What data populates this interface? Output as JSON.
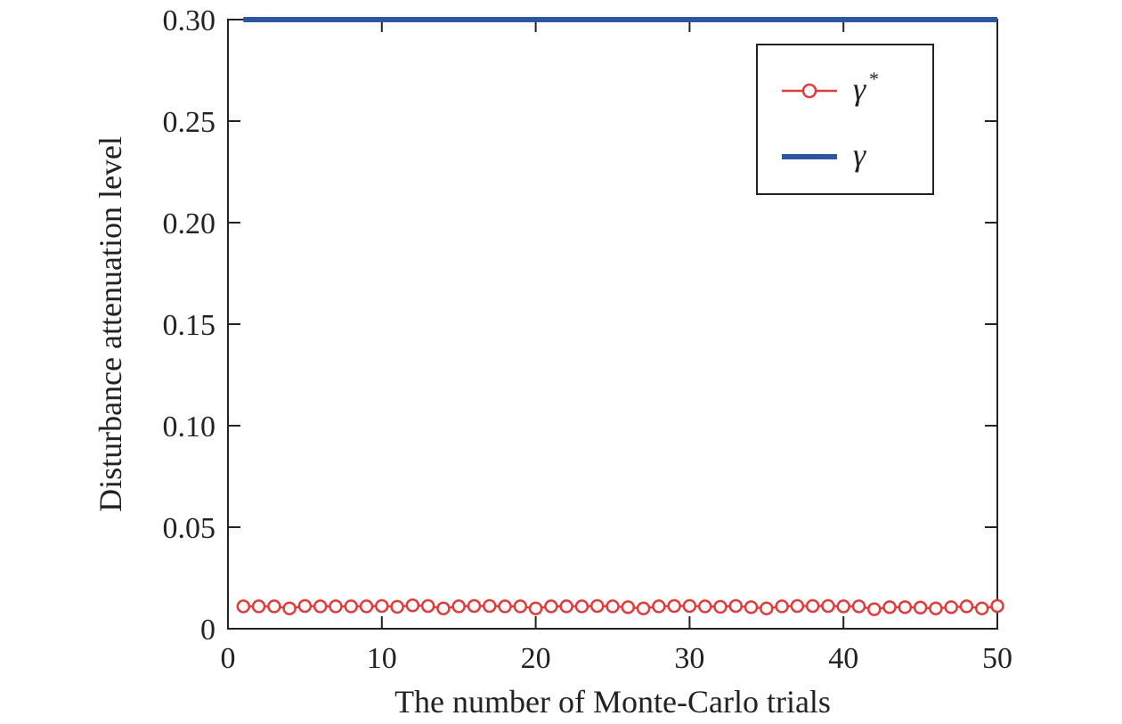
{
  "chart_data": {
    "type": "line",
    "title": "",
    "xlabel": "The number of Monte-Carlo trials",
    "ylabel": "Disturbance attenuation level",
    "xlim": [
      0,
      50
    ],
    "ylim": [
      0,
      0.3
    ],
    "xticks": [
      0,
      10,
      20,
      30,
      40,
      50
    ],
    "xtick_labels": [
      "0",
      "10",
      "20",
      "30",
      "40",
      "50"
    ],
    "yticks": [
      0,
      0.05,
      0.1,
      0.15,
      0.2,
      0.25,
      0.3
    ],
    "ytick_labels": [
      "0",
      "0.05",
      "0.10",
      "0.15",
      "0.20",
      "0.25",
      "0.30"
    ],
    "grid": false,
    "legend_position": "top-right",
    "x": [
      1,
      2,
      3,
      4,
      5,
      6,
      7,
      8,
      9,
      10,
      11,
      12,
      13,
      14,
      15,
      16,
      17,
      18,
      19,
      20,
      21,
      22,
      23,
      24,
      25,
      26,
      27,
      28,
      29,
      30,
      31,
      32,
      33,
      34,
      35,
      36,
      37,
      38,
      39,
      40,
      41,
      42,
      43,
      44,
      45,
      46,
      47,
      48,
      49,
      50
    ],
    "series": [
      {
        "name": "γ*",
        "legend_base": "γ",
        "legend_sup": "*",
        "color": "#e03c3c",
        "marker": "circle",
        "style": "line-marker",
        "values": [
          0.011,
          0.011,
          0.011,
          0.01,
          0.0112,
          0.011,
          0.011,
          0.011,
          0.011,
          0.0112,
          0.0108,
          0.0115,
          0.0112,
          0.01,
          0.011,
          0.0112,
          0.0112,
          0.011,
          0.011,
          0.01,
          0.011,
          0.011,
          0.011,
          0.0112,
          0.011,
          0.0106,
          0.01,
          0.011,
          0.0112,
          0.0112,
          0.011,
          0.0108,
          0.0112,
          0.0106,
          0.01,
          0.011,
          0.0112,
          0.0112,
          0.0112,
          0.011,
          0.011,
          0.0096,
          0.0106,
          0.0106,
          0.0104,
          0.01,
          0.0106,
          0.011,
          0.01,
          0.0112
        ]
      },
      {
        "name": "γ",
        "legend_base": "γ",
        "legend_sup": "",
        "color": "#2d55a0",
        "marker": "none",
        "style": "line",
        "values": [
          0.3,
          0.3,
          0.3,
          0.3,
          0.3,
          0.3,
          0.3,
          0.3,
          0.3,
          0.3,
          0.3,
          0.3,
          0.3,
          0.3,
          0.3,
          0.3,
          0.3,
          0.3,
          0.3,
          0.3,
          0.3,
          0.3,
          0.3,
          0.3,
          0.3,
          0.3,
          0.3,
          0.3,
          0.3,
          0.3,
          0.3,
          0.3,
          0.3,
          0.3,
          0.3,
          0.3,
          0.3,
          0.3,
          0.3,
          0.3,
          0.3,
          0.3,
          0.3,
          0.3,
          0.3,
          0.3,
          0.3,
          0.3,
          0.3,
          0.3
        ]
      }
    ]
  }
}
